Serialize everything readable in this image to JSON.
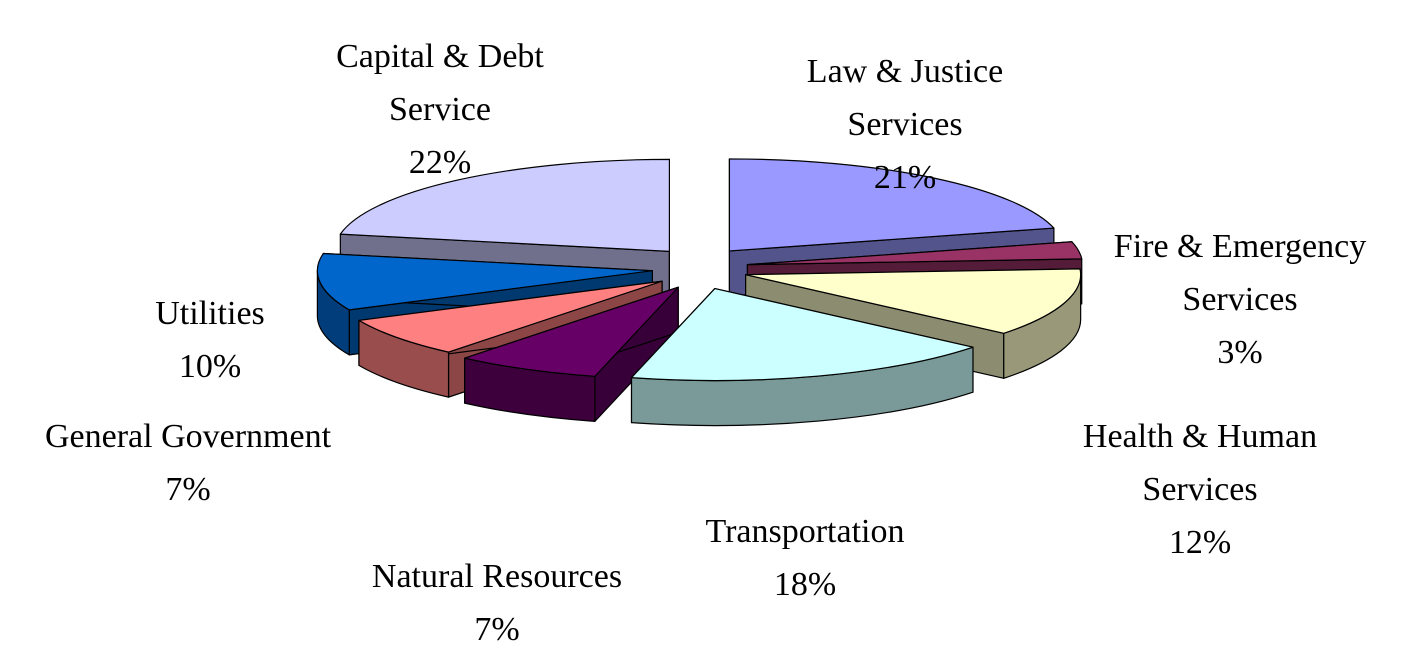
{
  "chart_data": {
    "type": "pie",
    "three_d": true,
    "exploded": true,
    "categories": [
      "Law & Justice Services",
      "Fire & Emergency Services",
      "Health & Human Services",
      "Transportation",
      "Natural Resources",
      "General Government",
      "Utilities",
      "Capital & Debt Service"
    ],
    "values": [
      21,
      3,
      12,
      18,
      7,
      7,
      10,
      22
    ],
    "value_labels": [
      "21%",
      "3%",
      "12%",
      "18%",
      "7%",
      "7%",
      "10%",
      "22%"
    ],
    "colors": [
      "#9999ff",
      "#993366",
      "#ffffcc",
      "#ccffff",
      "#660066",
      "#ff8080",
      "#0066cc",
      "#ccccff"
    ]
  }
}
